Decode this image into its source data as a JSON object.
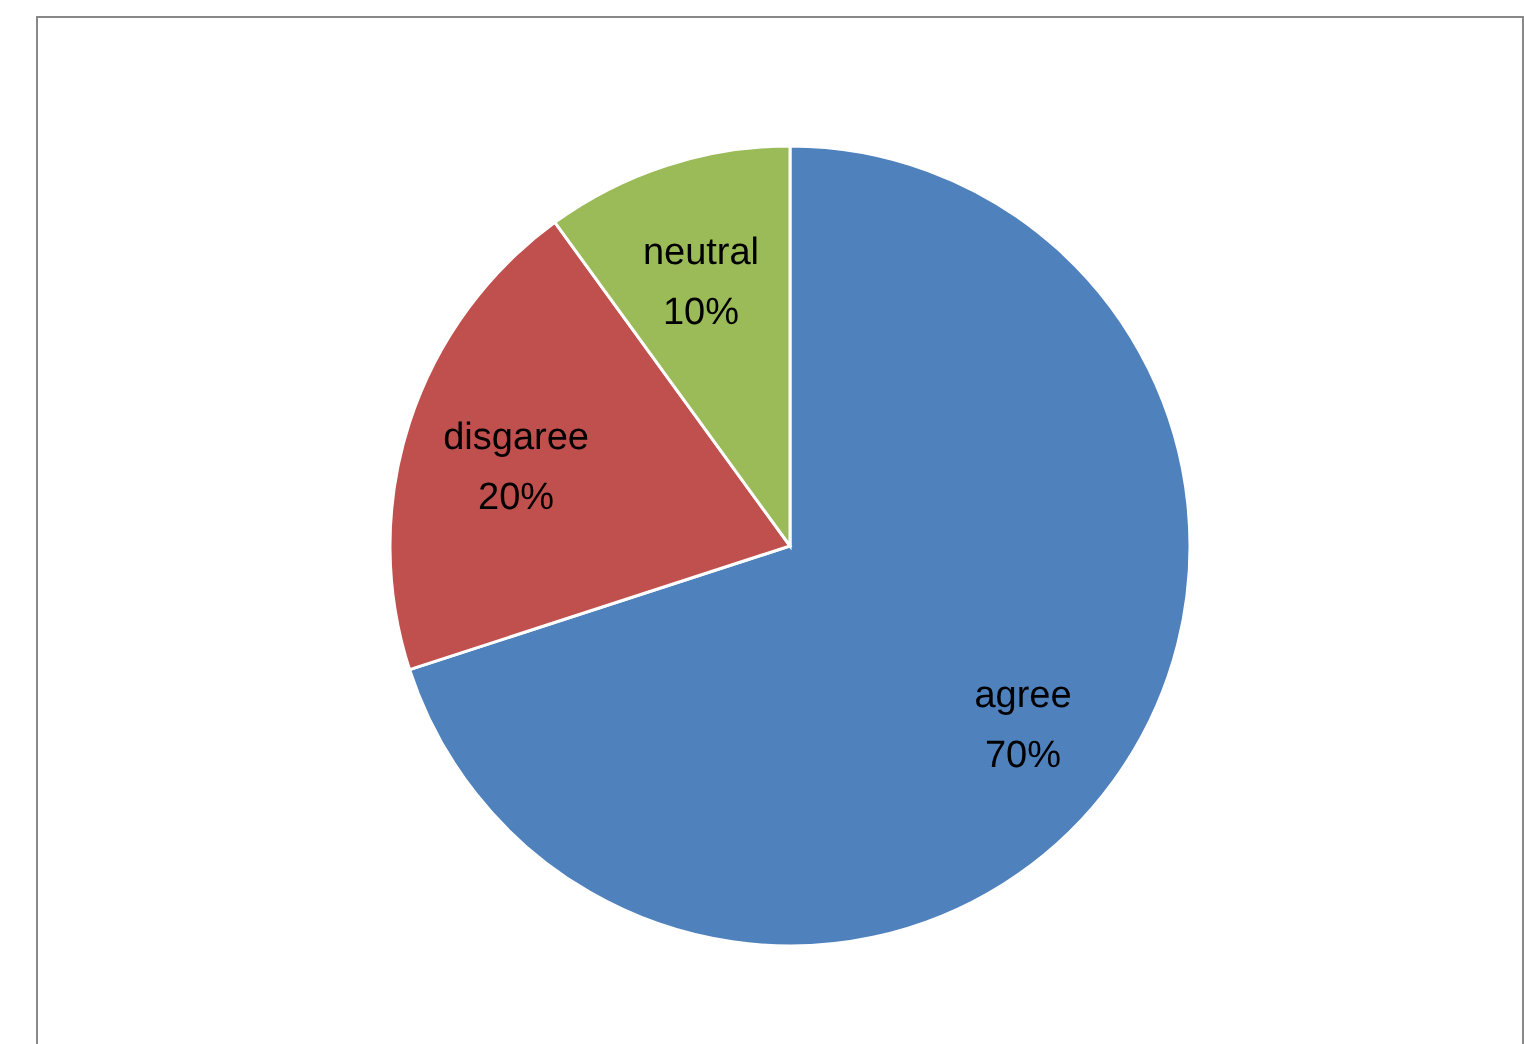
{
  "chart_data": {
    "type": "pie",
    "categories": [
      "agree",
      "disgaree",
      "neutral"
    ],
    "values": [
      70,
      20,
      10
    ],
    "colors": [
      "#4f81bd",
      "#c0504d",
      "#9bbb59"
    ],
    "value_labels": [
      "70%",
      "20%",
      "10%"
    ],
    "legend": false
  }
}
